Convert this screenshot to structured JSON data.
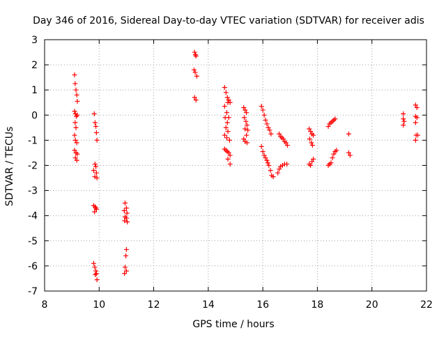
{
  "chart_data": {
    "type": "scatter",
    "title": "Day 346 of 2016, Sidereal Day-to-day VTEC variation (SDTVAR) for receiver adis",
    "xlabel": "GPS time / hours",
    "ylabel": "SDTVAR / TECUs",
    "xlim": [
      8,
      22
    ],
    "ylim": [
      -7,
      3
    ],
    "xticks": [
      8,
      10,
      12,
      14,
      16,
      18,
      20,
      22
    ],
    "yticks": [
      -7,
      -6,
      -5,
      -4,
      -3,
      -2,
      -1,
      0,
      1,
      2,
      3
    ],
    "grid": true,
    "marker": "plus",
    "color": "#ff0000",
    "series": [
      {
        "name": "SDTVAR",
        "points": [
          [
            9.1,
            1.6
          ],
          [
            9.12,
            1.25
          ],
          [
            9.15,
            1.0
          ],
          [
            9.18,
            0.8
          ],
          [
            9.2,
            0.55
          ],
          [
            9.1,
            0.15
          ],
          [
            9.13,
            0.05
          ],
          [
            9.16,
            -0.05
          ],
          [
            9.2,
            0.0
          ],
          [
            9.12,
            -0.3
          ],
          [
            9.15,
            -0.5
          ],
          [
            9.1,
            -0.8
          ],
          [
            9.13,
            -1.0
          ],
          [
            9.18,
            -1.1
          ],
          [
            9.1,
            -1.4
          ],
          [
            9.15,
            -1.5
          ],
          [
            9.2,
            -1.55
          ],
          [
            9.13,
            -1.7
          ],
          [
            9.18,
            -1.8
          ],
          [
            9.82,
            0.05
          ],
          [
            9.85,
            -0.3
          ],
          [
            9.88,
            -0.45
          ],
          [
            9.9,
            -0.7
          ],
          [
            9.92,
            -1.0
          ],
          [
            9.85,
            -1.95
          ],
          [
            9.88,
            -2.05
          ],
          [
            9.8,
            -2.2
          ],
          [
            9.9,
            -2.3
          ],
          [
            9.84,
            -2.45
          ],
          [
            9.92,
            -2.5
          ],
          [
            9.8,
            -3.6
          ],
          [
            9.85,
            -3.65
          ],
          [
            9.88,
            -3.7
          ],
          [
            9.9,
            -3.75
          ],
          [
            9.83,
            -3.85
          ],
          [
            9.8,
            -5.9
          ],
          [
            9.84,
            -6.05
          ],
          [
            9.88,
            -6.2
          ],
          [
            9.9,
            -6.3
          ],
          [
            9.86,
            -6.35
          ],
          [
            9.92,
            -6.55
          ],
          [
            10.95,
            -3.5
          ],
          [
            11.0,
            -3.7
          ],
          [
            10.92,
            -3.8
          ],
          [
            11.02,
            -3.9
          ],
          [
            10.95,
            -4.05
          ],
          [
            11.0,
            -4.1
          ],
          [
            10.93,
            -4.2
          ],
          [
            11.03,
            -4.25
          ],
          [
            11.0,
            -5.35
          ],
          [
            10.98,
            -5.6
          ],
          [
            10.95,
            -6.05
          ],
          [
            11.0,
            -6.2
          ],
          [
            10.93,
            -6.3
          ],
          [
            13.5,
            2.5
          ],
          [
            13.53,
            2.4
          ],
          [
            13.55,
            2.35
          ],
          [
            13.48,
            1.8
          ],
          [
            13.52,
            1.7
          ],
          [
            13.58,
            1.55
          ],
          [
            13.5,
            0.7
          ],
          [
            13.55,
            0.6
          ],
          [
            14.6,
            1.1
          ],
          [
            14.65,
            0.9
          ],
          [
            14.7,
            0.7
          ],
          [
            14.72,
            0.5
          ],
          [
            14.75,
            0.6
          ],
          [
            14.8,
            0.5
          ],
          [
            14.6,
            0.35
          ],
          [
            14.68,
            0.1
          ],
          [
            14.62,
            -0.1
          ],
          [
            14.7,
            -0.3
          ],
          [
            14.75,
            -0.1
          ],
          [
            14.65,
            -0.5
          ],
          [
            14.72,
            -0.65
          ],
          [
            14.6,
            -0.8
          ],
          [
            14.68,
            -0.9
          ],
          [
            14.78,
            -1.0
          ],
          [
            14.6,
            -1.35
          ],
          [
            14.65,
            -1.4
          ],
          [
            14.7,
            -1.45
          ],
          [
            14.75,
            -1.5
          ],
          [
            14.8,
            -1.6
          ],
          [
            14.72,
            -1.75
          ],
          [
            14.8,
            -1.95
          ],
          [
            15.3,
            0.3
          ],
          [
            15.35,
            0.2
          ],
          [
            15.4,
            0.1
          ],
          [
            15.32,
            -0.1
          ],
          [
            15.38,
            -0.25
          ],
          [
            15.42,
            -0.4
          ],
          [
            15.35,
            -0.55
          ],
          [
            15.45,
            -0.6
          ],
          [
            15.4,
            -0.8
          ],
          [
            15.3,
            -0.95
          ],
          [
            15.35,
            -1.05
          ],
          [
            15.42,
            -1.1
          ],
          [
            15.95,
            0.35
          ],
          [
            16.0,
            0.2
          ],
          [
            16.05,
            0.0
          ],
          [
            16.1,
            -0.2
          ],
          [
            16.15,
            -0.35
          ],
          [
            16.2,
            -0.5
          ],
          [
            16.25,
            -0.6
          ],
          [
            16.3,
            -0.75
          ],
          [
            15.95,
            -1.25
          ],
          [
            16.0,
            -1.45
          ],
          [
            16.05,
            -1.6
          ],
          [
            16.1,
            -1.7
          ],
          [
            16.15,
            -1.8
          ],
          [
            16.18,
            -1.9
          ],
          [
            16.22,
            -2.0
          ],
          [
            16.28,
            -2.2
          ],
          [
            16.32,
            -2.4
          ],
          [
            16.38,
            -2.45
          ],
          [
            16.6,
            -0.75
          ],
          [
            16.65,
            -0.85
          ],
          [
            16.7,
            -0.9
          ],
          [
            16.75,
            -0.95
          ],
          [
            16.8,
            -1.05
          ],
          [
            16.85,
            -1.1
          ],
          [
            16.9,
            -1.2
          ],
          [
            16.55,
            -2.3
          ],
          [
            16.6,
            -2.15
          ],
          [
            16.65,
            -2.05
          ],
          [
            16.72,
            -2.0
          ],
          [
            16.8,
            -1.95
          ],
          [
            16.88,
            -1.95
          ],
          [
            17.7,
            -0.55
          ],
          [
            17.75,
            -0.65
          ],
          [
            17.8,
            -0.75
          ],
          [
            17.85,
            -0.8
          ],
          [
            17.72,
            -0.95
          ],
          [
            17.78,
            -1.1
          ],
          [
            17.82,
            -1.2
          ],
          [
            17.7,
            -1.95
          ],
          [
            17.75,
            -2.0
          ],
          [
            17.8,
            -1.85
          ],
          [
            17.85,
            -1.75
          ],
          [
            18.4,
            -0.45
          ],
          [
            18.45,
            -0.35
          ],
          [
            18.5,
            -0.3
          ],
          [
            18.55,
            -0.25
          ],
          [
            18.6,
            -0.2
          ],
          [
            18.65,
            -0.15
          ],
          [
            18.4,
            -2.0
          ],
          [
            18.45,
            -1.95
          ],
          [
            18.5,
            -1.9
          ],
          [
            18.55,
            -1.7
          ],
          [
            18.6,
            -1.55
          ],
          [
            18.65,
            -1.45
          ],
          [
            18.7,
            -1.4
          ],
          [
            19.15,
            -0.75
          ],
          [
            19.15,
            -1.5
          ],
          [
            19.2,
            -1.6
          ],
          [
            21.15,
            0.05
          ],
          [
            21.15,
            -0.15
          ],
          [
            21.18,
            -0.25
          ],
          [
            21.15,
            -0.4
          ],
          [
            21.6,
            0.4
          ],
          [
            21.65,
            0.3
          ],
          [
            21.6,
            -0.05
          ],
          [
            21.65,
            -0.1
          ],
          [
            21.6,
            -0.3
          ],
          [
            21.62,
            -0.8
          ],
          [
            21.68,
            -0.8
          ],
          [
            21.6,
            -1.0
          ]
        ]
      }
    ]
  }
}
